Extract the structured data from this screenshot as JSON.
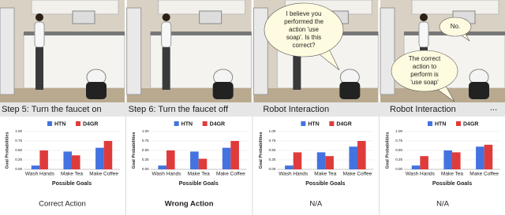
{
  "left_ellipsis": "...",
  "right_ellipsis": "...",
  "panels": [
    {
      "step": "Step 5: Turn the faucet on",
      "bubbles": [],
      "result": "Correct Action",
      "result_color": "#222222",
      "chart": {
        "type": "bar",
        "y_label": "Goal Probabilities",
        "x_label": "Possible Goals",
        "categories": [
          "Wash Hands",
          "Make Tea",
          "Make Coffee"
        ],
        "series": [
          {
            "name": "HTN",
            "color": "#4472e0",
            "values": [
              0.1,
              0.47,
              0.57
            ]
          },
          {
            "name": "D4GR",
            "color": "#e03b3b",
            "values": [
              0.5,
              0.37,
              0.75
            ]
          }
        ],
        "ylim": [
          0,
          1
        ],
        "yticks": [
          {
            "value": 0,
            "label": "0.00"
          },
          {
            "value": 0.25,
            "label": "0.25"
          },
          {
            "value": 0.5,
            "label": "0.50"
          },
          {
            "value": 0.75,
            "label": "0.75"
          },
          {
            "value": 1,
            "label": "1.00"
          }
        ]
      }
    },
    {
      "step": "Step 6: Turn the faucet off",
      "bubbles": [],
      "result": "Wrong Action",
      "result_color": "#e03b3b",
      "chart": {
        "type": "bar",
        "y_label": "Goal Probabilities",
        "x_label": "Possible Goals",
        "categories": [
          "Wash Hands",
          "Make Tea",
          "Make Coffee"
        ],
        "series": [
          {
            "name": "HTN",
            "color": "#4472e0",
            "values": [
              0.1,
              0.47,
              0.57
            ]
          },
          {
            "name": "D4GR",
            "color": "#e03b3b",
            "values": [
              0.5,
              0.28,
              0.75
            ]
          }
        ],
        "ylim": [
          0,
          1
        ],
        "yticks": [
          {
            "value": 0,
            "label": "0.00"
          },
          {
            "value": 0.25,
            "label": "0.25"
          },
          {
            "value": 0.5,
            "label": "0.50"
          },
          {
            "value": 0.75,
            "label": "0.75"
          },
          {
            "value": 1,
            "label": "1.00"
          }
        ]
      }
    },
    {
      "step": "Robot Interaction",
      "bubbles": [
        {
          "lines": [
            "I believe you",
            "performed the",
            "action 'use",
            "soap'. Is this",
            "correct?"
          ]
        }
      ],
      "result": "N/A",
      "result_color": "#222222",
      "chart": {
        "type": "bar",
        "y_label": "Goal Probabilities",
        "x_label": "Possible Goals",
        "categories": [
          "Wash Hands",
          "Make Tea",
          "Make Coffee"
        ],
        "series": [
          {
            "name": "HTN",
            "color": "#4472e0",
            "values": [
              0.1,
              0.45,
              0.6
            ]
          },
          {
            "name": "D4GR",
            "color": "#e03b3b",
            "values": [
              0.45,
              0.35,
              0.75
            ]
          }
        ],
        "ylim": [
          0,
          1
        ],
        "yticks": [
          {
            "value": 0,
            "label": "0.00"
          },
          {
            "value": 0.25,
            "label": "0.25"
          },
          {
            "value": 0.5,
            "label": "0.50"
          },
          {
            "value": 0.75,
            "label": "0.75"
          },
          {
            "value": 1,
            "label": "1.00"
          }
        ]
      }
    },
    {
      "step": "Robot Interaction",
      "bubbles": [
        {
          "lines": [
            "No."
          ]
        },
        {
          "lines": [
            "The correct",
            "action to",
            "perform is",
            "'use soap'"
          ]
        }
      ],
      "result": "N/A",
      "result_color": "#222222",
      "chart": {
        "type": "bar",
        "y_label": "Goal Probabilities",
        "x_label": "Possible Goals",
        "categories": [
          "Wash Hands",
          "Make Tea",
          "Make Coffee"
        ],
        "series": [
          {
            "name": "HTN",
            "color": "#4472e0",
            "values": [
              0.1,
              0.5,
              0.6
            ]
          },
          {
            "name": "D4GR",
            "color": "#e03b3b",
            "values": [
              0.35,
              0.45,
              0.65
            ]
          }
        ],
        "ylim": [
          0,
          1
        ],
        "yticks": [
          {
            "value": 0,
            "label": "0.00"
          },
          {
            "value": 0.25,
            "label": "0.25"
          },
          {
            "value": 0.5,
            "label": "0.50"
          },
          {
            "value": 0.75,
            "label": "0.75"
          },
          {
            "value": 1,
            "label": "1.00"
          }
        ]
      }
    }
  ]
}
